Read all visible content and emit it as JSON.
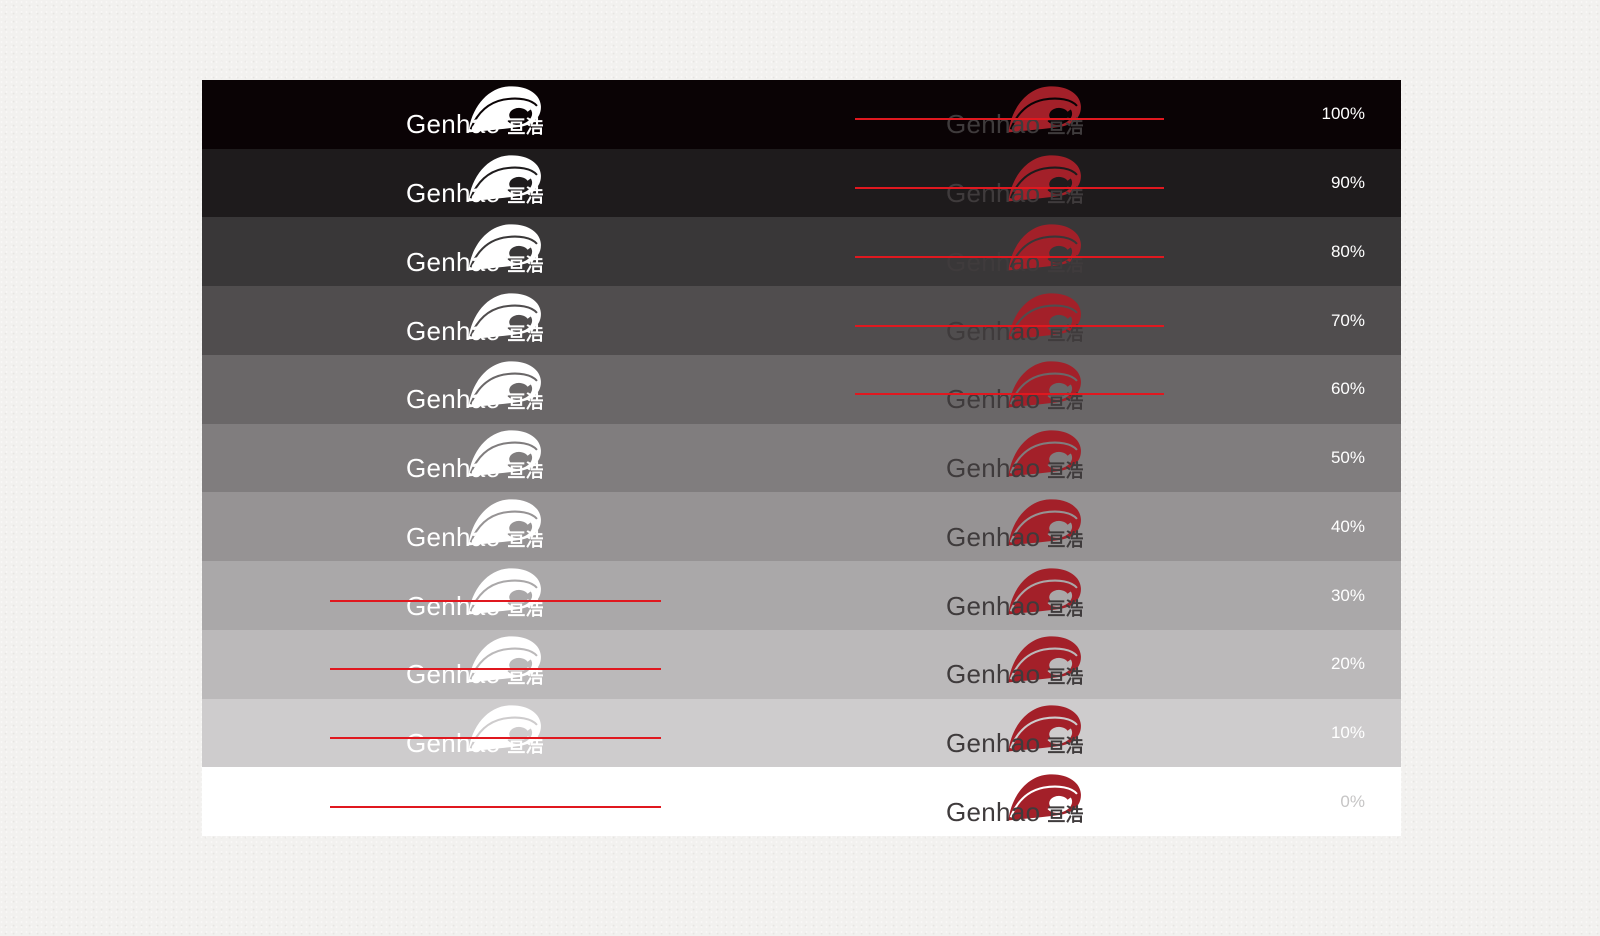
{
  "panel": {
    "rows": [
      {
        "percent": "100%",
        "bg": "#0a0305",
        "label_color": "#ffffff",
        "left_strike": false,
        "right_strike": true
      },
      {
        "percent": "90%",
        "bg": "#1e1b1c",
        "label_color": "#ffffff",
        "left_strike": false,
        "right_strike": true
      },
      {
        "percent": "80%",
        "bg": "#393738",
        "label_color": "#ffffff",
        "left_strike": false,
        "right_strike": true
      },
      {
        "percent": "70%",
        "bg": "#504d4e",
        "label_color": "#ffffff",
        "left_strike": false,
        "right_strike": true
      },
      {
        "percent": "60%",
        "bg": "#6a6768",
        "label_color": "#ffffff",
        "left_strike": false,
        "right_strike": true
      },
      {
        "percent": "50%",
        "bg": "#807d7e",
        "label_color": "#ffffff",
        "left_strike": false,
        "right_strike": false
      },
      {
        "percent": "40%",
        "bg": "#969394",
        "label_color": "#ffffff",
        "left_strike": false,
        "right_strike": false
      },
      {
        "percent": "30%",
        "bg": "#aaa8a9",
        "label_color": "#ffffff",
        "left_strike": true,
        "right_strike": false
      },
      {
        "percent": "20%",
        "bg": "#bbb9ba",
        "label_color": "#ffffff",
        "left_strike": true,
        "right_strike": false
      },
      {
        "percent": "10%",
        "bg": "#cecccd",
        "label_color": "#ffffff",
        "left_strike": true,
        "right_strike": false
      },
      {
        "percent": "0%",
        "bg": "#ffffff",
        "label_color": "#c6c5c5",
        "left_strike": true,
        "right_strike": false
      }
    ]
  },
  "logo": {
    "wordmark": "Genhao",
    "cjk": "亘浩",
    "white_variant": {
      "mark": "#ffffff",
      "text": "#ffffff"
    },
    "red_variant": {
      "mark": "#a32029",
      "text": "#3f3b3c"
    }
  },
  "strike_color": "#e0181f"
}
